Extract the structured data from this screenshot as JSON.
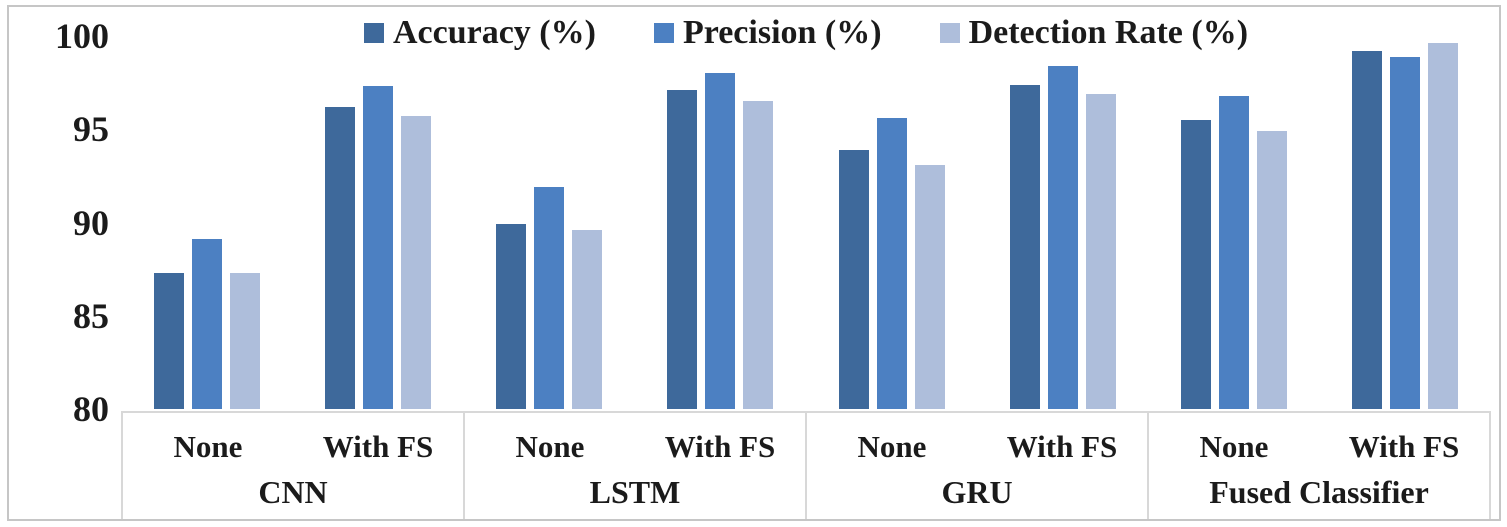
{
  "chart_data": {
    "type": "bar",
    "title": "",
    "xlabel": "",
    "ylabel": "",
    "ylim": [
      80,
      100
    ],
    "yticks": [
      100,
      95,
      90,
      85,
      80
    ],
    "grid": false,
    "legend_position": "top-center",
    "text_color": "#1b1b1b",
    "frame_color": "#c6c6c6",
    "table_border_color": "#d8d8d8",
    "series": [
      {
        "name": "Accuracy (%)",
        "color": "#3e699b"
      },
      {
        "name": "Precision (%)",
        "color": "#4c80c2"
      },
      {
        "name": "Detection Rate (%)",
        "color": "#aebedb"
      }
    ],
    "groups": [
      {
        "label": "CNN",
        "conditions": [
          {
            "label": "None",
            "values": [
              87.3,
              89.1,
              87.3
            ]
          },
          {
            "label": "With FS",
            "values": [
              96.2,
              97.3,
              95.7
            ]
          }
        ]
      },
      {
        "label": "LSTM",
        "conditions": [
          {
            "label": "None",
            "values": [
              89.9,
              91.9,
              89.6
            ]
          },
          {
            "label": "With FS",
            "values": [
              97.1,
              98.0,
              96.5
            ]
          }
        ]
      },
      {
        "label": "GRU",
        "conditions": [
          {
            "label": "None",
            "values": [
              93.9,
              95.6,
              93.1
            ]
          },
          {
            "label": "With FS",
            "values": [
              97.4,
              98.4,
              96.9
            ]
          }
        ]
      },
      {
        "label": "Fused Classifier",
        "conditions": [
          {
            "label": "None",
            "values": [
              95.5,
              96.8,
              94.9
            ]
          },
          {
            "label": "With FS",
            "values": [
              99.2,
              98.9,
              99.6
            ]
          }
        ]
      }
    ]
  }
}
